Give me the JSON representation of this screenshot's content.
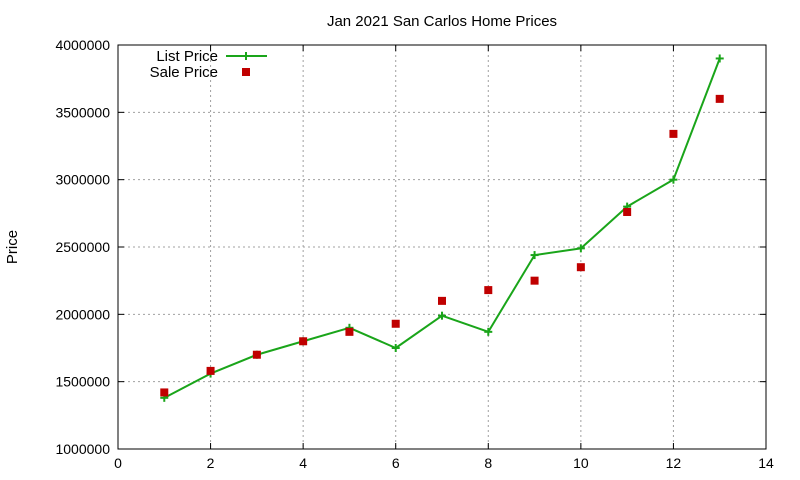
{
  "chart_data": {
    "type": "line",
    "title": "Jan 2021 San Carlos Home Prices",
    "xlabel": "",
    "ylabel": "Price",
    "xlim": [
      0,
      14
    ],
    "ylim": [
      1000000,
      4000000
    ],
    "xticks": [
      0,
      2,
      4,
      6,
      8,
      10,
      12,
      14
    ],
    "yticks": [
      1000000,
      1500000,
      2000000,
      2500000,
      3000000,
      3500000,
      4000000
    ],
    "grid": true,
    "legend_position": "top-left",
    "series": [
      {
        "name": "List Price",
        "style": "line-plus",
        "color": "#1aa51a",
        "x": [
          1,
          2,
          3,
          4,
          5,
          6,
          7,
          8,
          9,
          10,
          11,
          12,
          13
        ],
        "values": [
          1380000,
          1560000,
          1700000,
          1800000,
          1900000,
          1750000,
          1990000,
          1870000,
          2440000,
          2490000,
          2800000,
          3000000,
          3900000
        ]
      },
      {
        "name": "Sale Price",
        "style": "square-points",
        "color": "#c00000",
        "x": [
          1,
          2,
          3,
          4,
          5,
          6,
          7,
          8,
          9,
          10,
          11,
          12,
          13
        ],
        "values": [
          1420000,
          1580000,
          1700000,
          1800000,
          1870000,
          1930000,
          2100000,
          2180000,
          2250000,
          2350000,
          2760000,
          3340000,
          3600000
        ]
      }
    ]
  }
}
